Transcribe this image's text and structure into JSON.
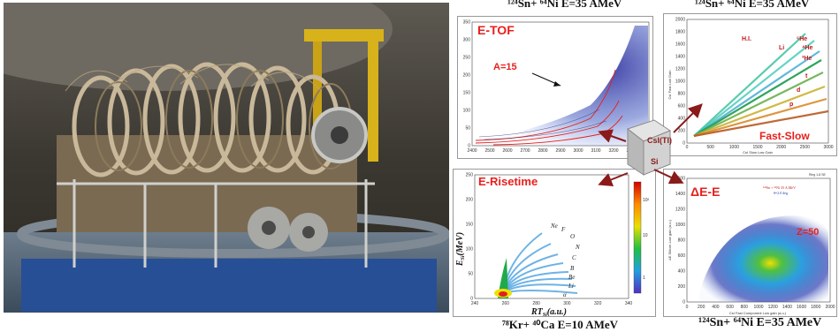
{
  "captions": {
    "etof_top": "¹²⁴Sn+ ⁶⁴Ni E=35  AMeV",
    "fastslow_top": "¹²⁴Sn+ ⁶⁴Ni E=35  AMeV",
    "erise_bottom": "⁷⁸Kr+ ⁴⁰Ca E=10 AMeV",
    "dee_bottom": "¹²⁴Sn+ ⁶⁴Ni E=35  AMeV"
  },
  "etof": {
    "title": "E-TOF",
    "annotation": "A=15",
    "y_ticks": [
      "0",
      "50",
      "100",
      "150",
      "200",
      "250",
      "300",
      "350"
    ],
    "x_ticks": [
      "2400",
      "2500",
      "2600",
      "2700",
      "2800",
      "2900",
      "3000",
      "3100",
      "3200",
      "3300",
      "3400"
    ]
  },
  "fastslow": {
    "title": "Fast-Slow",
    "labels": [
      "H.I.",
      "⁶He",
      "⁴He",
      "Li",
      "³He",
      "t",
      "d",
      "p"
    ],
    "ylabel": "CsI Fast Low Gain",
    "xlabel": "CsI Slow Low Gain",
    "y_ticks": [
      "0",
      "200",
      "400",
      "600",
      "800",
      "1000",
      "1200",
      "1400",
      "1600",
      "1800",
      "2000"
    ],
    "x_ticks": [
      "0",
      "500",
      "1000",
      "1500",
      "2000",
      "2500",
      "3000"
    ]
  },
  "erise": {
    "title": "E-Risetime",
    "labels": [
      "Ne",
      "F",
      "O",
      "N",
      "C",
      "B",
      "Be",
      "Li",
      "α"
    ],
    "ylabel": "E",
    "ylabel_sub": "Si",
    "ylabel_unit": "(MeV)",
    "xlabel": "RT",
    "xlabel_sub": "Si",
    "xlabel_unit": "(a.u.)",
    "y_ticks": [
      "0",
      "50",
      "100",
      "150",
      "200",
      "250"
    ],
    "x_ticks": [
      "240",
      "260",
      "280",
      "300",
      "320",
      "340"
    ],
    "colorbar_ticks": [
      "10²",
      "10",
      "1"
    ]
  },
  "dee": {
    "title": "ΔE-E",
    "annotation": "Z=50",
    "legend_line1": "¹²⁴Sn + ⁶⁴Ni 35 A.MeV",
    "legend_line2": "θ=2.0 deg.",
    "header": "Ring 1-8 SE",
    "ylabel": "ΔE Silicon Low gain (a.u.)",
    "xlabel": "CsI Fast Component Low gain (a.u.)",
    "y_ticks": [
      "0",
      "200",
      "400",
      "600",
      "800",
      "1000",
      "1200",
      "1400",
      "1600"
    ],
    "x_ticks": [
      "0",
      "200",
      "400",
      "600",
      "800",
      "1000",
      "1200",
      "1400",
      "1600",
      "1800",
      "2000"
    ]
  },
  "detector": {
    "label_top": "CsI(Tl)",
    "label_bottom": "Si"
  },
  "colors": {
    "accent_red": "#e8201c",
    "arrow": "#8b1a1a",
    "fastslow_green": "#1a9a4a",
    "dee_blue": "#1f3fa8"
  }
}
